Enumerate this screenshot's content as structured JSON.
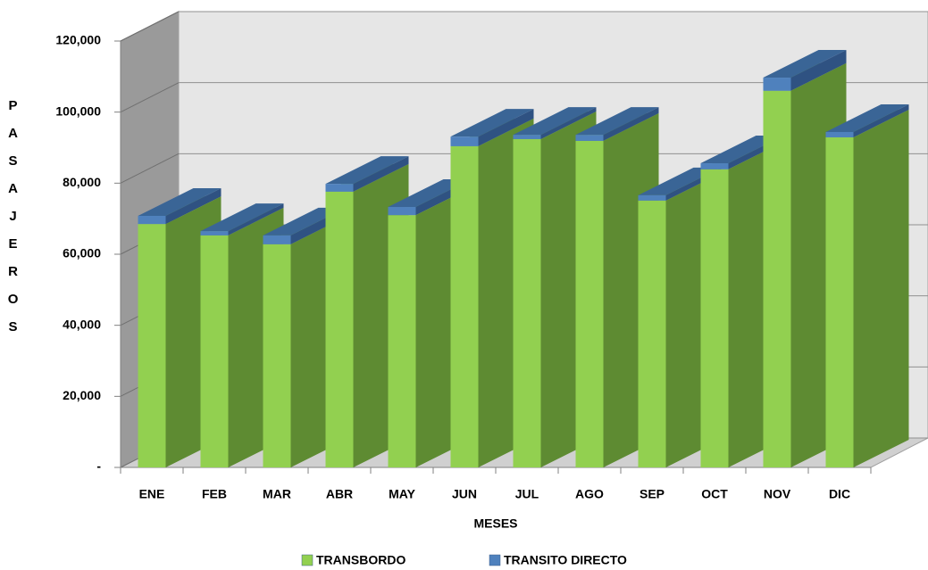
{
  "chart_data": {
    "type": "bar3d_stacked",
    "x_label": "MESES",
    "y_label": "PASAJEROS",
    "categories": [
      "ENE",
      "FEB",
      "MAR",
      "ABR",
      "MAY",
      "JUN",
      "JUL",
      "AGO",
      "SEP",
      "OCT",
      "NOV",
      "DIC"
    ],
    "series": [
      {
        "name": "TRANSBORDO",
        "color": "#92d050",
        "values": [
          68500,
          65300,
          62800,
          77600,
          71000,
          90400,
          92400,
          91900,
          75100,
          83900,
          106000,
          92900
        ]
      },
      {
        "name": "TRANSITO DIRECTO",
        "color": "#4f81bd",
        "values": [
          2300,
          1200,
          2500,
          2200,
          2300,
          2700,
          1200,
          1700,
          1500,
          1700,
          3700,
          1500
        ]
      }
    ],
    "ylim": [
      0,
      120000
    ],
    "yticks": [
      {
        "value": 0,
        "label": "-"
      },
      {
        "value": 20000,
        "label": "20,000"
      },
      {
        "value": 40000,
        "label": "40,000"
      },
      {
        "value": 60000,
        "label": "60,000"
      },
      {
        "value": 80000,
        "label": "80,000"
      },
      {
        "value": 100000,
        "label": "100,000"
      },
      {
        "value": 120000,
        "label": "120,000"
      }
    ],
    "grid": true,
    "legend": "bottom"
  }
}
